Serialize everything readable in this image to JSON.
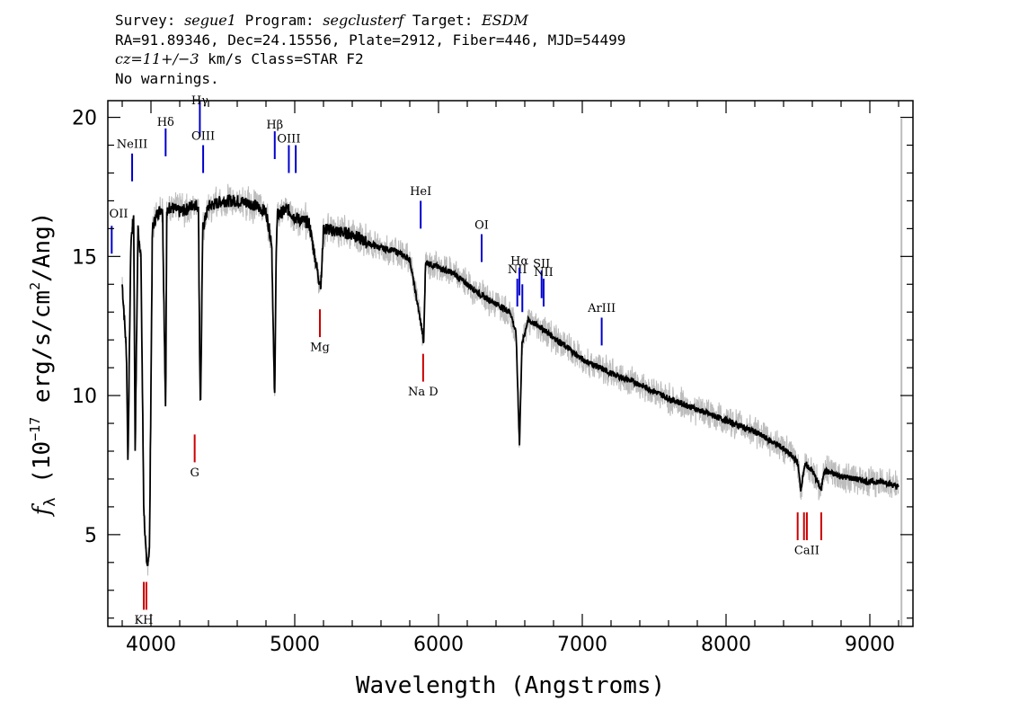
{
  "header": {
    "line1": {
      "survey_label": "Survey:",
      "survey": "segue1",
      "program_label": "Program:",
      "program": "segclusterf",
      "target_label": "Target:",
      "target": "ESDM"
    },
    "line2": "RA=91.89346, Dec=24.15556, Plate=2912, Fiber=446, MJD=54499",
    "line3": {
      "cz_label": "cz",
      "cz_value": "=11+/−3",
      "cz_rest": " km/s Class=STAR F2"
    },
    "line4": "No warnings."
  },
  "chart_data": {
    "type": "line",
    "title": "",
    "xlabel": "Wavelength (Angstroms)",
    "ylabel_prefix": "f",
    "ylabel_sub": "λ",
    "ylabel_mid": " (10",
    "ylabel_exp": "−17",
    "ylabel_rest": " erg/s/cm",
    "ylabel_exp2": "2",
    "ylabel_end": "/Ang)",
    "xlim": [
      3700,
      9300
    ],
    "ylim": [
      1.7,
      20.6
    ],
    "xticks": [
      4000,
      5000,
      6000,
      7000,
      8000,
      9000
    ],
    "xtick_labels": [
      "4000",
      "5000",
      "6000",
      "7000",
      "8000",
      "9000"
    ],
    "yticks": [
      5,
      10,
      15,
      20
    ],
    "ytick_labels": [
      "5",
      "10",
      "15",
      "20"
    ],
    "series": [
      {
        "role": "flux",
        "color": "#000000",
        "x": [
          3800,
          3830,
          3840,
          3860,
          3880,
          3890,
          3910,
          3930,
          3950,
          3970,
          3990,
          4010,
          4040,
          4080,
          4100,
          4102,
          4110,
          4130,
          4200,
          4250,
          4300,
          4330,
          4340,
          4345,
          4360,
          4400,
          4500,
          4600,
          4700,
          4800,
          4840,
          4855,
          4861,
          4870,
          4880,
          4950,
          5000,
          5100,
          5167,
          5183,
          5200,
          5300,
          5400,
          5500,
          5600,
          5700,
          5800,
          5890,
          5896,
          5910,
          6000,
          6100,
          6200,
          6300,
          6400,
          6500,
          6540,
          6563,
          6580,
          6620,
          6700,
          6800,
          6900,
          7000,
          7200,
          7400,
          7600,
          7800,
          8000,
          8200,
          8400,
          8498,
          8520,
          8542,
          8560,
          8600,
          8662,
          8680,
          8800,
          9000,
          9100,
          9200
        ],
        "values": [
          14.0,
          11.5,
          7.5,
          15.5,
          16.5,
          8.0,
          16.0,
          15.0,
          6.0,
          3.8,
          4.5,
          16.0,
          16.5,
          16.8,
          10.0,
          9.5,
          16.5,
          16.8,
          16.6,
          16.7,
          16.9,
          16.8,
          11.0,
          9.5,
          16.0,
          16.8,
          17.0,
          17.0,
          16.9,
          16.6,
          15.5,
          11.0,
          9.8,
          15.0,
          16.5,
          16.7,
          16.4,
          16.2,
          14.2,
          14.0,
          16.0,
          15.9,
          15.8,
          15.5,
          15.3,
          15.2,
          14.9,
          12.2,
          11.8,
          14.8,
          14.6,
          14.4,
          14.0,
          13.6,
          13.3,
          13.0,
          12.2,
          8.2,
          11.8,
          12.7,
          12.5,
          12.1,
          11.7,
          11.3,
          10.8,
          10.4,
          9.9,
          9.5,
          9.1,
          8.7,
          8.1,
          7.6,
          6.6,
          7.4,
          7.5,
          7.3,
          6.6,
          7.3,
          7.1,
          6.9,
          6.9,
          6.7
        ]
      },
      {
        "role": "error",
        "color": "#bdbdbd",
        "x": [
          3700,
          9300
        ],
        "values": [
          0.5,
          0.5
        ]
      }
    ],
    "emission_lines": [
      {
        "label": "OII",
        "x": 3727,
        "y0": 15.1,
        "y1": 16.1,
        "label_y": 16.4,
        "color": "#0000cc"
      },
      {
        "label": "NeIII",
        "x": 3869,
        "y0": 17.7,
        "y1": 18.7,
        "label_y": 18.9,
        "color": "#0000cc"
      },
      {
        "label": "Hδ",
        "x": 4102,
        "y0": 18.6,
        "y1": 19.6,
        "label_y": 19.7,
        "color": "#0000cc"
      },
      {
        "label": "Hγ",
        "x": 4340,
        "y0": 19.3,
        "y1": 20.8,
        "label_y": 20.6,
        "color": "#0000cc"
      },
      {
        "label": "OIII",
        "x": 4363,
        "y0": 18.0,
        "y1": 19.0,
        "label_y": 19.2,
        "color": "#0000cc"
      },
      {
        "label": "Hβ",
        "x": 4861,
        "y0": 18.5,
        "y1": 19.5,
        "label_y": 19.6,
        "color": "#0000cc"
      },
      {
        "label": "OIII",
        "x": 4959,
        "y0": 18.0,
        "y1": 19.0,
        "label_y": 19.1,
        "color": "#0000cc"
      },
      {
        "label": "",
        "x": 5007,
        "y0": 18.0,
        "y1": 19.0,
        "label_y": 0,
        "color": "#0000cc"
      },
      {
        "label": "HeI",
        "x": 5876,
        "y0": 16.0,
        "y1": 17.0,
        "label_y": 17.2,
        "color": "#0000cc"
      },
      {
        "label": "OI",
        "x": 6300,
        "y0": 14.8,
        "y1": 15.8,
        "label_y": 16.0,
        "color": "#0000cc"
      },
      {
        "label": "NII",
        "x": 6548,
        "y0": 13.2,
        "y1": 14.2,
        "label_y": 14.4,
        "color": "#0000cc"
      },
      {
        "label": "Hα",
        "x": 6563,
        "y0": 13.6,
        "y1": 14.6,
        "label_y": 14.7,
        "color": "#0000cc"
      },
      {
        "label": "",
        "x": 6583,
        "y0": 13.0,
        "y1": 14.0,
        "label_y": 0,
        "color": "#0000cc"
      },
      {
        "label": "SII",
        "x": 6717,
        "y0": 13.5,
        "y1": 14.5,
        "label_y": 14.6,
        "color": "#0000cc"
      },
      {
        "label": "NII",
        "x": 6731,
        "y0": 13.2,
        "y1": 14.2,
        "label_y": 14.3,
        "color": "#0000cc"
      },
      {
        "label": "ArIII",
        "x": 7135,
        "y0": 11.8,
        "y1": 12.8,
        "label_y": 13.0,
        "color": "#0000cc"
      }
    ],
    "absorption_lines": [
      {
        "label": "Mg",
        "x": 5175,
        "y0": 12.1,
        "y1": 13.1,
        "label_y": 11.6,
        "color": "#cc0000"
      },
      {
        "label": "G",
        "x": 4304,
        "y0": 7.6,
        "y1": 8.6,
        "label_y": 7.1,
        "color": "#cc0000"
      },
      {
        "label": "Na D",
        "x": 5893,
        "y0": 10.5,
        "y1": 11.5,
        "label_y": 10.0,
        "color": "#cc0000"
      },
      {
        "label": "KH",
        "x": 3950,
        "y0": 2.3,
        "y1": 3.3,
        "label_y": 1.8,
        "color": "#cc0000"
      },
      {
        "label": "",
        "x": 3968,
        "y0": 2.3,
        "y1": 3.3,
        "label_y": 0,
        "color": "#cc0000"
      },
      {
        "label": "CaII",
        "x": 8562,
        "y0": 4.8,
        "y1": 5.8,
        "label_y": 4.3,
        "color": "#cc0000"
      },
      {
        "label": "",
        "x": 8498,
        "y0": 4.8,
        "y1": 5.8,
        "label_y": 0,
        "color": "#cc0000"
      },
      {
        "label": "",
        "x": 8542,
        "y0": 4.8,
        "y1": 5.8,
        "label_y": 0,
        "color": "#cc0000"
      },
      {
        "label": "",
        "x": 8662,
        "y0": 4.8,
        "y1": 5.8,
        "label_y": 0,
        "color": "#cc0000"
      }
    ]
  }
}
